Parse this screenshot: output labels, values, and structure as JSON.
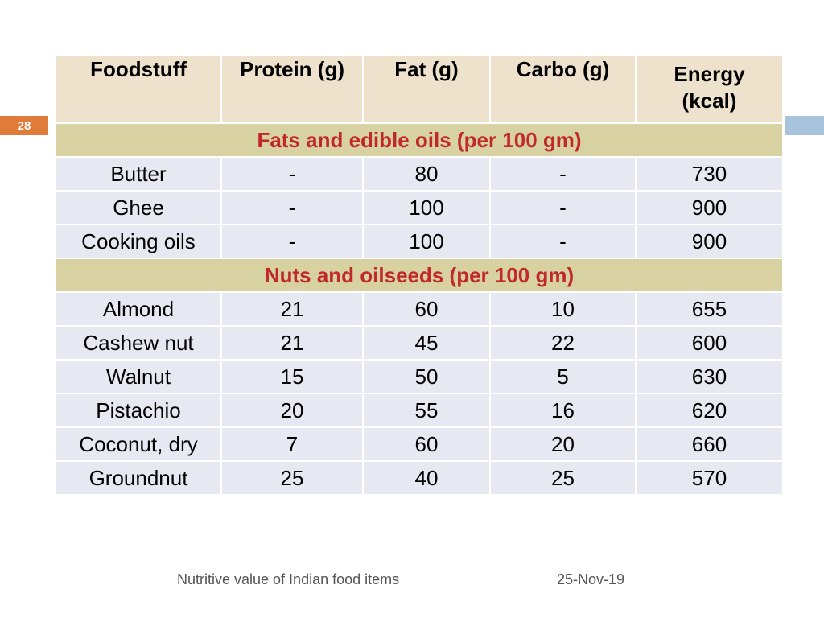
{
  "slide": {
    "number": "28"
  },
  "table": {
    "headers": [
      "Foodstuff",
      "Protein (g)",
      "Fat (g)",
      "Carbo (g)",
      "Energy\n(kcal)"
    ],
    "sections": [
      {
        "title": "Fats and edible oils (per 100 gm)",
        "rows": [
          [
            "Butter",
            "-",
            "80",
            "-",
            "730"
          ],
          [
            "Ghee",
            "-",
            "100",
            "-",
            "900"
          ],
          [
            "Cooking oils",
            "-",
            "100",
            "-",
            "900"
          ]
        ]
      },
      {
        "title": "Nuts and oilseeds (per 100 gm)",
        "rows": [
          [
            "Almond",
            "21",
            "60",
            "10",
            "655"
          ],
          [
            "Cashew nut",
            "21",
            "45",
            "22",
            "600"
          ],
          [
            "Walnut",
            "15",
            "50",
            "5",
            "630"
          ],
          [
            "Pistachio",
            "20",
            "55",
            "16",
            "620"
          ],
          [
            "Coconut, dry",
            "7",
            "60",
            "20",
            "660"
          ],
          [
            "Groundnut",
            "25",
            "40",
            "25",
            "570"
          ]
        ]
      }
    ]
  },
  "footer": {
    "title": "Nutritive value of Indian food items",
    "date": "25-Nov-19"
  },
  "colors": {
    "header_bg": "#efe2cc",
    "section_bg": "#d8d1a2",
    "section_text": "#c0282a",
    "row_bg": "#e6e9f1",
    "slide_number_bg": "#e07b39",
    "right_bar": "#a8c3dc"
  }
}
